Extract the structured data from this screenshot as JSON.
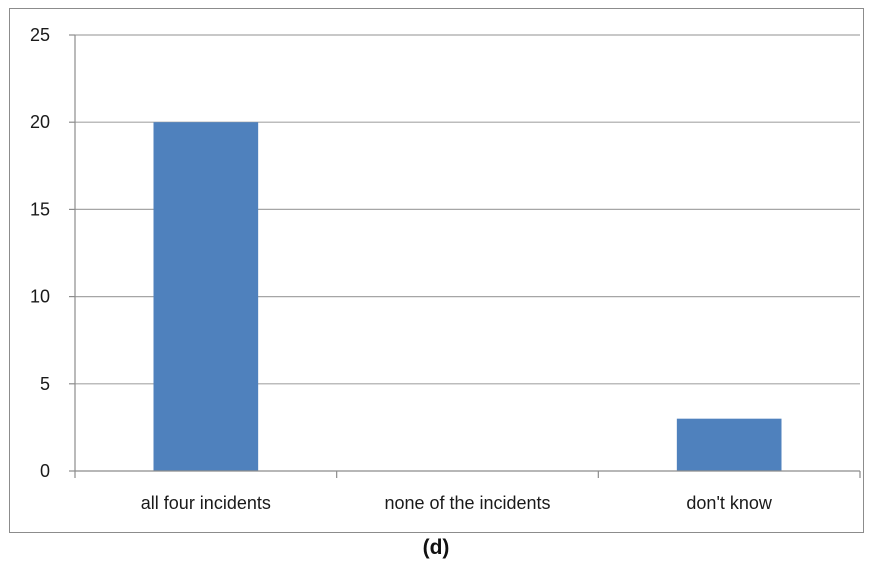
{
  "chart_data": {
    "type": "bar",
    "title": "",
    "xlabel": "",
    "ylabel": "",
    "categories": [
      "all four incidents",
      "none of the incidents",
      "don't know"
    ],
    "values": [
      20,
      0,
      3
    ],
    "ylim": [
      0,
      25
    ],
    "yticks": [
      0,
      5,
      10,
      15,
      20,
      25
    ],
    "grid": true,
    "legend": "none",
    "colors": {
      "bar": "#4f81bd",
      "grid": "#a6a6a6",
      "axis": "#8c8c8c",
      "text": "#1a1a1a"
    }
  },
  "caption": "(d)"
}
